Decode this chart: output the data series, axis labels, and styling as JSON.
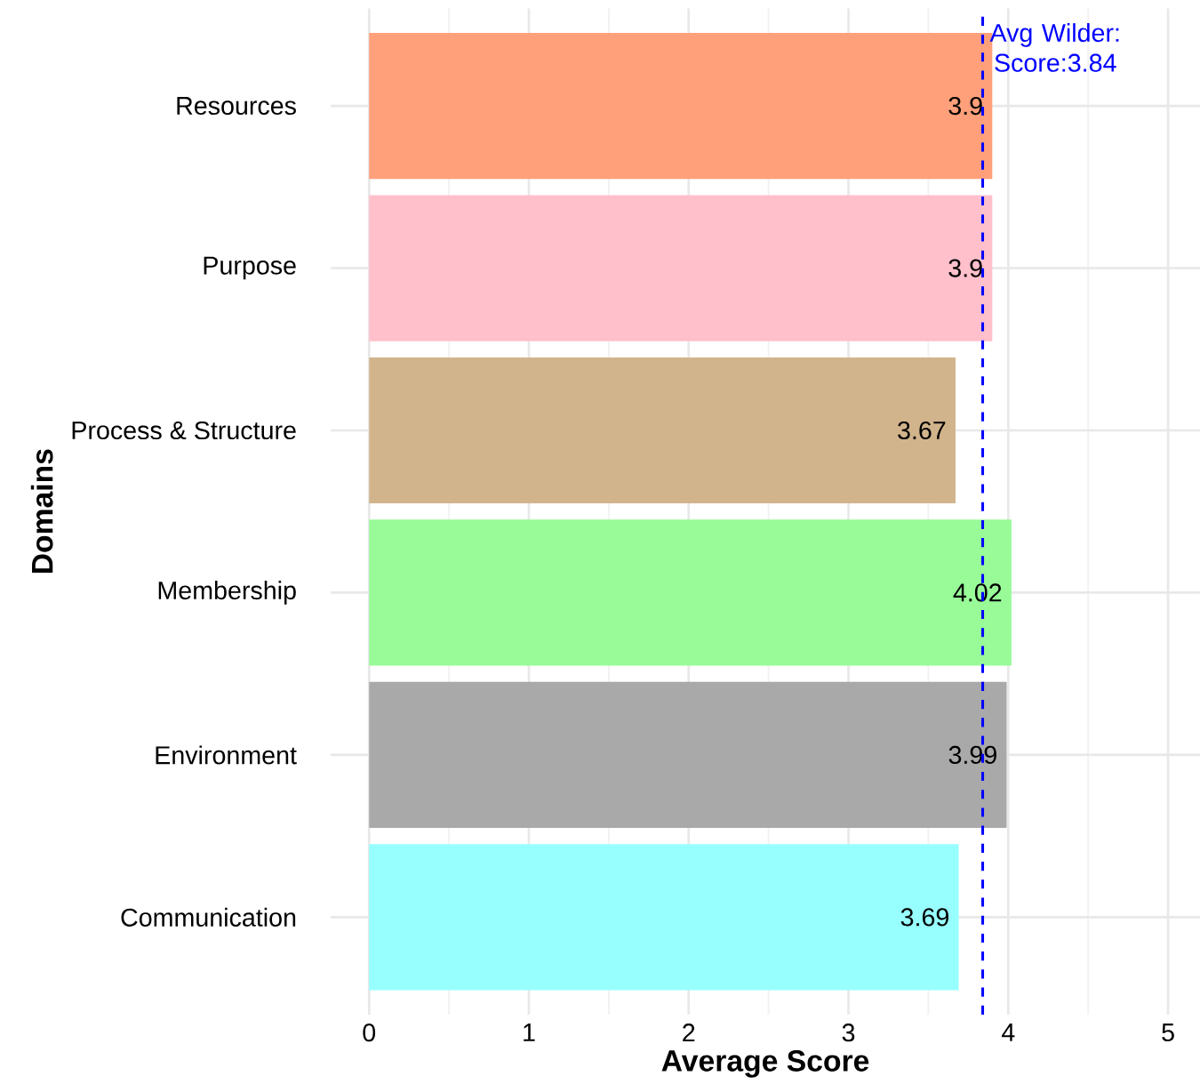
{
  "chart_data": {
    "type": "bar",
    "orientation": "horizontal",
    "xlabel": "Average Score",
    "ylabel": "Domains",
    "categories": [
      "Resources",
      "Purpose",
      "Process & Structure",
      "Membership",
      "Environment",
      "Communication"
    ],
    "values": [
      3.9,
      3.9,
      3.67,
      4.02,
      3.99,
      3.69
    ],
    "colors": [
      "#ffa07a",
      "#ffc0cb",
      "#d2b48c",
      "#98fb98",
      "#a9a9a9",
      "#98ffff"
    ],
    "data_labels": true,
    "xlim": [
      -0.24,
      5.2
    ],
    "xticks": [
      0,
      1,
      2,
      3,
      4,
      5
    ],
    "grid": true,
    "ref_lines": [
      {
        "axis": "x",
        "value": 3.84,
        "label": "Avg Wilder: Score:3.84",
        "color": "#0000ff",
        "line_style": "dashed"
      }
    ]
  }
}
